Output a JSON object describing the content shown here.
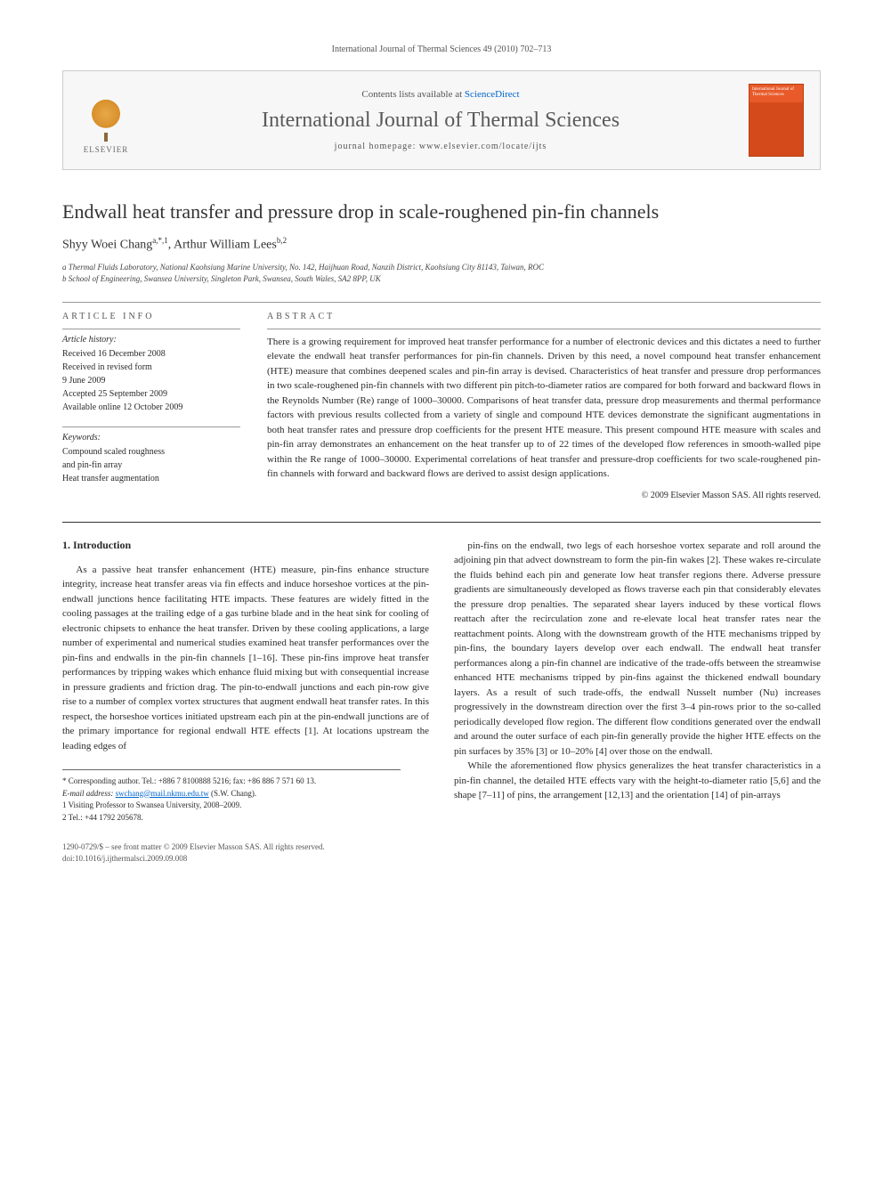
{
  "header_ref": "International Journal of Thermal Sciences 49 (2010) 702–713",
  "masthead": {
    "contents_prefix": "Contents lists available at ",
    "contents_link": "ScienceDirect",
    "journal_name": "International Journal of Thermal Sciences",
    "homepage_prefix": "journal homepage: ",
    "homepage_url": "www.elsevier.com/locate/ijts",
    "elsevier_label": "ELSEVIER",
    "cover_label": "International Journal of Thermal Sciences"
  },
  "article": {
    "title": "Endwall heat transfer and pressure drop in scale-roughened pin-fin channels",
    "authors_html": "Shyy Woei Chang",
    "author1": "Shyy Woei Chang",
    "author1_sup": "a,*,1",
    "author2": "Arthur William Lees",
    "author2_sup": "b,2",
    "sep": ", ",
    "affiliations": [
      "a Thermal Fluids Laboratory, National Kaohsiung Marine University, No. 142, Haijhuan Road, Nanzih District, Kaohsiung City 81143, Taiwan, ROC",
      "b School of Engineering, Swansea University, Singleton Park, Swansea, South Wales, SA2 8PP, UK"
    ]
  },
  "info": {
    "section_label": "ARTICLE INFO",
    "history_label": "Article history:",
    "history": [
      "Received 16 December 2008",
      "Received in revised form",
      "9 June 2009",
      "Accepted 25 September 2009",
      "Available online 12 October 2009"
    ],
    "keywords_label": "Keywords:",
    "keywords": [
      "Compound scaled roughness",
      "and pin-fin array",
      "Heat transfer augmentation"
    ]
  },
  "abstract": {
    "section_label": "ABSTRACT",
    "text": "There is a growing requirement for improved heat transfer performance for a number of electronic devices and this dictates a need to further elevate the endwall heat transfer performances for pin-fin channels. Driven by this need, a novel compound heat transfer enhancement (HTE) measure that combines deepened scales and pin-fin array is devised. Characteristics of heat transfer and pressure drop performances in two scale-roughened pin-fin channels with two different pin pitch-to-diameter ratios are compared for both forward and backward flows in the Reynolds Number (Re) range of 1000–30000. Comparisons of heat transfer data, pressure drop measurements and thermal performance factors with previous results collected from a variety of single and compound HTE devices demonstrate the significant augmentations in both heat transfer rates and pressure drop coefficients for the present HTE measure. This present compound HTE measure with scales and pin-fin array demonstrates an enhancement on the heat transfer up to of 22 times of the developed flow references in smooth-walled pipe within the Re range of 1000–30000. Experimental correlations of heat transfer and pressure-drop coefficients for two scale-roughened pin-fin channels with forward and backward flows are derived to assist design applications.",
    "copyright": "© 2009 Elsevier Masson SAS. All rights reserved."
  },
  "body": {
    "heading": "1. Introduction",
    "col1_p1": "As a passive heat transfer enhancement (HTE) measure, pin-fins enhance structure integrity, increase heat transfer areas via fin effects and induce horseshoe vortices at the pin-endwall junctions hence facilitating HTE impacts. These features are widely fitted in the cooling passages at the trailing edge of a gas turbine blade and in the heat sink for cooling of electronic chipsets to enhance the heat transfer. Driven by these cooling applications, a large number of experimental and numerical studies examined heat transfer performances over the pin-fins and endwalls in the pin-fin channels [1–16]. These pin-fins improve heat transfer performances by tripping wakes which enhance fluid mixing but with consequential increase in pressure gradients and friction drag. The pin-to-endwall junctions and each pin-row give rise to a number of complex vortex structures that augment endwall heat transfer rates. In this respect, the horseshoe vortices initiated upstream each pin at the pin-endwall junctions are of the primary importance for regional endwall HTE effects [1]. At locations upstream the leading edges of",
    "col2_p1": "pin-fins on the endwall, two legs of each horseshoe vortex separate and roll around the adjoining pin that advect downstream to form the pin-fin wakes [2]. These wakes re-circulate the fluids behind each pin and generate low heat transfer regions there. Adverse pressure gradients are simultaneously developed as flows traverse each pin that considerably elevates the pressure drop penalties. The separated shear layers induced by these vortical flows reattach after the recirculation zone and re-elevate local heat transfer rates near the reattachment points. Along with the downstream growth of the HTE mechanisms tripped by pin-fins, the boundary layers develop over each endwall. The endwall heat transfer performances along a pin-fin channel are indicative of the trade-offs between the streamwise enhanced HTE mechanisms tripped by pin-fins against the thickened endwall boundary layers. As a result of such trade-offs, the endwall Nusselt number (Nu) increases progressively in the downstream direction over the first 3–4 pin-rows prior to the so-called periodically developed flow region. The different flow conditions generated over the endwall and around the outer surface of each pin-fin generally provide the higher HTE effects on the pin surfaces by 35% [3] or 10–20% [4] over those on the endwall.",
    "col2_p2": "While the aforementioned flow physics generalizes the heat transfer characteristics in a pin-fin channel, the detailed HTE effects vary with the height-to-diameter ratio [5,6] and the shape [7–11] of pins, the arrangement [12,13] and the orientation [14] of pin-arrays"
  },
  "footnotes": {
    "corr_label": "* Corresponding author. Tel.: +886 7 8100888 5216; fax: +86 886 7 571 60 13.",
    "email_label": "E-mail address: ",
    "email": "swchang@mail.nkmu.edu.tw",
    "email_tail": " (S.W. Chang).",
    "note1": "1 Visiting Professor to Swansea University, 2008–2009.",
    "note2": "2 Tel.: +44 1792 205678."
  },
  "footer": {
    "line1": "1290-0729/$ – see front matter © 2009 Elsevier Masson SAS. All rights reserved.",
    "line2": "doi:10.1016/j.ijthermalsci.2009.09.008"
  }
}
